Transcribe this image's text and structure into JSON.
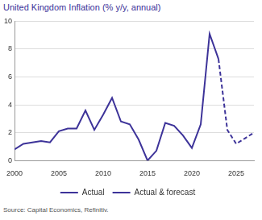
{
  "chart_data": {
    "type": "line",
    "title": "United Kingdom Inflation (% y/y, annual)",
    "source": "Source: Capital Economics, Refinitiv.",
    "x": [
      2000,
      2001,
      2002,
      2003,
      2004,
      2005,
      2006,
      2007,
      2008,
      2009,
      2010,
      2011,
      2012,
      2013,
      2014,
      2015,
      2016,
      2017,
      2018,
      2019,
      2020,
      2021,
      2022,
      2023,
      2024,
      2025,
      2026,
      2027
    ],
    "series": [
      {
        "name": "Actual",
        "color": "#3d3399",
        "line_style": "solid",
        "values": [
          0.8,
          1.2,
          1.3,
          1.4,
          1.3,
          2.1,
          2.3,
          2.3,
          3.6,
          2.2,
          3.3,
          4.5,
          2.8,
          2.6,
          1.5,
          0.0,
          0.7,
          2.7,
          2.5,
          1.8,
          0.9,
          2.6,
          9.1,
          7.3,
          null,
          null,
          null,
          null
        ]
      },
      {
        "name": "Actual & forecast",
        "color": "#3d3399",
        "line_style": "dashed",
        "values": [
          null,
          null,
          null,
          null,
          null,
          null,
          null,
          null,
          null,
          null,
          null,
          null,
          null,
          null,
          null,
          null,
          null,
          null,
          null,
          null,
          null,
          null,
          null,
          7.3,
          2.2,
          1.2,
          1.6,
          2.0
        ]
      }
    ],
    "xlim": [
      2000,
      2027
    ],
    "xticks": [
      2000,
      2005,
      2010,
      2015,
      2020,
      2025
    ],
    "ylim": [
      0,
      10
    ],
    "yticks": [
      0,
      2,
      4,
      6,
      8,
      10
    ],
    "grid": true,
    "legend": "bottom"
  }
}
